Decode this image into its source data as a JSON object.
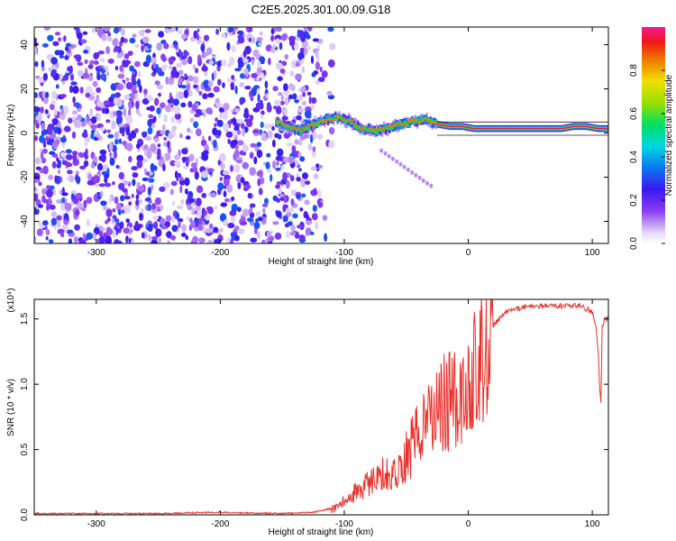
{
  "title": "C2E5.2025.301.00.09.G18",
  "chart_data": [
    {
      "type": "heatmap",
      "name": "spectrogram",
      "xlabel": "Height of straight line (km)",
      "ylabel": "Frequency (Hz)",
      "xlim": [
        -350,
        113
      ],
      "ylim": [
        -50,
        48
      ],
      "xticks": [
        -300,
        -200,
        -100,
        0,
        100
      ],
      "yticks": [
        -40,
        -20,
        0,
        20,
        40
      ],
      "xtick_labels": [
        "-300",
        "-200",
        "-100",
        "0",
        "100"
      ],
      "ytick_labels": [
        "-40",
        "-20",
        "0",
        "20",
        "40"
      ],
      "colorbar": {
        "label": "Normalized spectral amplitude",
        "range": [
          0,
          1
        ],
        "ticks": [
          0,
          0.2,
          0.4,
          0.6,
          0.8
        ],
        "tick_labels": [
          "0.0",
          "0.2",
          "0.4",
          "0.6",
          "0.8"
        ]
      },
      "noise_region_x": [
        -350,
        -115
      ],
      "signal_trace": {
        "x": [
          -155,
          -145,
          -135,
          -125,
          -115,
          -105,
          -95,
          -85,
          -75,
          -65,
          -55,
          -45,
          -35,
          -25,
          -15,
          -5,
          5,
          15,
          25,
          35,
          45,
          55,
          65,
          75,
          85,
          95,
          105,
          113
        ],
        "y": [
          5,
          3,
          1,
          4,
          6,
          7,
          5,
          2,
          1,
          2,
          4,
          5,
          6,
          4,
          3,
          3,
          2,
          2,
          2,
          2,
          2,
          2,
          2,
          2,
          3,
          3,
          2,
          2
        ]
      },
      "secondary_trace": {
        "x": [
          -70,
          -30
        ],
        "y": [
          -8,
          -24
        ]
      }
    },
    {
      "type": "line",
      "name": "snr",
      "xlabel": "Height of straight line (km)",
      "ylabel": "SNR (10 * v/v)",
      "y_multiplier": "(x10⁴)",
      "xlim": [
        -350,
        113
      ],
      "ylim": [
        0,
        1.65
      ],
      "xticks": [
        -300,
        -200,
        -100,
        0,
        100
      ],
      "yticks": [
        0,
        0.5,
        1.0,
        1.5
      ],
      "xtick_labels": [
        "-300",
        "-200",
        "-100",
        "0",
        "100"
      ],
      "ytick_labels": [
        "0.0",
        "0.5",
        "1.0",
        "1.5"
      ],
      "color": "#e8302a",
      "x": [
        -350,
        -300,
        -250,
        -200,
        -150,
        -125,
        -110,
        -100,
        -90,
        -80,
        -70,
        -60,
        -50,
        -40,
        -30,
        -20,
        -10,
        0,
        5,
        10,
        15,
        20,
        25,
        30,
        40,
        50,
        60,
        70,
        80,
        90,
        95,
        100,
        103,
        105,
        106,
        107,
        108,
        110,
        113
      ],
      "y": [
        0.01,
        0.01,
        0.01,
        0.02,
        0.01,
        0.02,
        0.05,
        0.1,
        0.18,
        0.25,
        0.35,
        0.3,
        0.45,
        0.6,
        0.75,
        0.85,
        0.9,
        1.0,
        1.1,
        1.2,
        1.35,
        1.45,
        1.5,
        1.55,
        1.58,
        1.6,
        1.6,
        1.6,
        1.6,
        1.6,
        1.58,
        1.55,
        1.45,
        1.2,
        0.95,
        0.85,
        1.45,
        1.5,
        1.5
      ]
    }
  ]
}
